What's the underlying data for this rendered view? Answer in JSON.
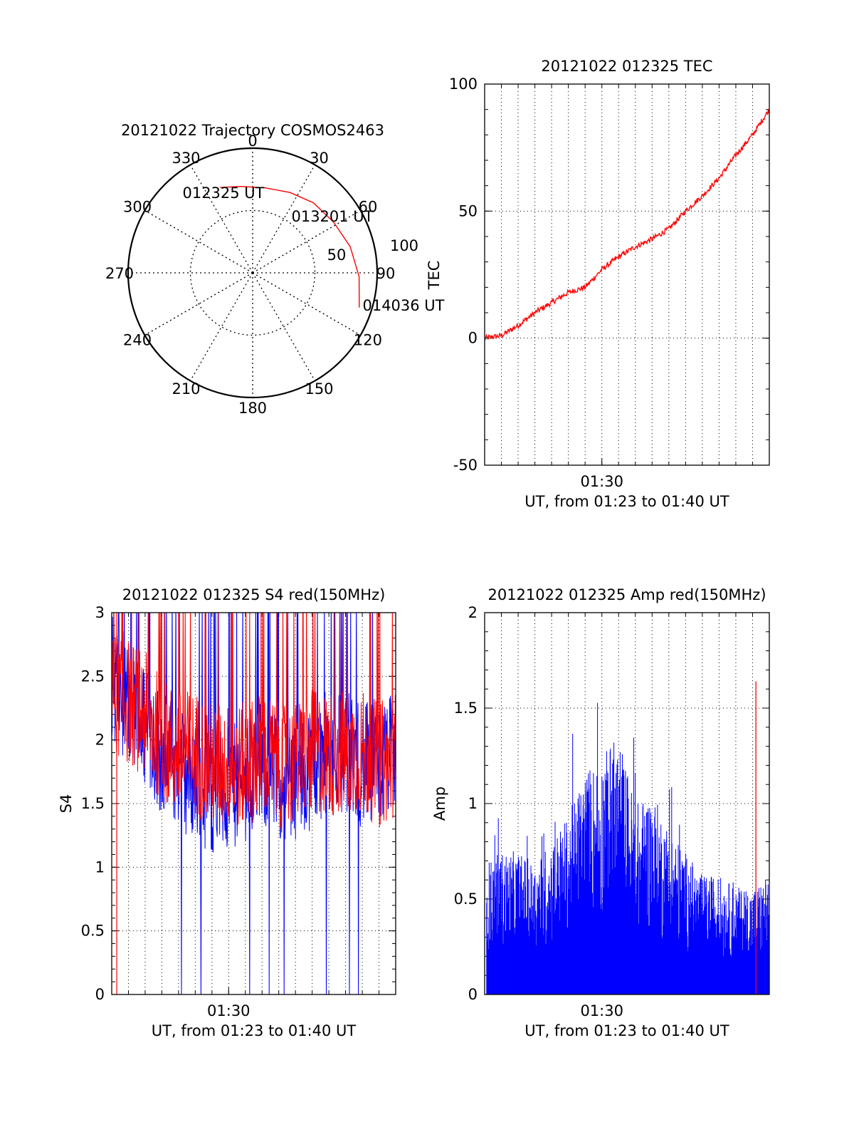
{
  "chart_data": [
    {
      "type": "polar",
      "title": "20121022 Trajectory COSMOS2463",
      "angle_labels": [
        "0",
        "30",
        "60",
        "90",
        "120",
        "150",
        "180",
        "210",
        "240",
        "270",
        "300",
        "330"
      ],
      "radius_ticks": [
        "50",
        "100"
      ],
      "trajectory": {
        "color": "#ff0000",
        "points": [
          {
            "azimuth": 339,
            "elevation": 24
          },
          {
            "azimuth": 352,
            "elevation": 27
          },
          {
            "azimuth": 8,
            "elevation": 28
          },
          {
            "azimuth": 25,
            "elevation": 26
          },
          {
            "azimuth": 41,
            "elevation": 23
          },
          {
            "azimuth": 58,
            "elevation": 21
          },
          {
            "azimuth": 75,
            "elevation": 17
          },
          {
            "azimuth": 92,
            "elevation": 13
          },
          {
            "azimuth": 108,
            "elevation": 9
          }
        ],
        "labels": [
          {
            "text": "012325 UT"
          },
          {
            "text": "013201 UT"
          },
          {
            "text": "014036 UT"
          }
        ]
      }
    },
    {
      "type": "line",
      "title": "20121022 012325 TEC",
      "xlabel": "UT, from 01:23 to 01:40 UT",
      "ylabel": "TEC",
      "xlim": [
        "01:23",
        "01:40"
      ],
      "ylim": [
        -50,
        100
      ],
      "yticks": [
        "-50",
        "0",
        "50",
        "100"
      ],
      "xtick_label": "01:30",
      "grid": true,
      "series": [
        {
          "color": "#ff0000",
          "x": [
            "01:23",
            "01:24",
            "01:25",
            "01:26",
            "01:27",
            "01:28",
            "01:29",
            "01:30",
            "01:31",
            "01:32",
            "01:33",
            "01:34",
            "01:35",
            "01:36",
            "01:37",
            "01:38",
            "01:39",
            "01:40"
          ],
          "values": [
            0,
            1,
            5,
            10,
            14,
            18,
            20,
            27,
            32,
            36,
            39,
            43,
            50,
            56,
            63,
            72,
            80,
            90
          ]
        }
      ]
    },
    {
      "type": "line",
      "title": "20121022 012325 S4 red(150MHz)",
      "xlabel": "UT, from 01:23 to 01:40 UT",
      "ylabel": "S4",
      "xlim": [
        "01:23",
        "01:40"
      ],
      "ylim": [
        0,
        3
      ],
      "yticks": [
        "0",
        "0.5",
        "1",
        "1.5",
        "2",
        "2.5",
        "3"
      ],
      "xtick_label": "01:30",
      "grid": true,
      "series": [
        {
          "color": "#0000ff",
          "x": [
            "01:23",
            "01:24",
            "01:25",
            "01:26",
            "01:27",
            "01:28",
            "01:29",
            "01:30",
            "01:31",
            "01:32",
            "01:33",
            "01:34",
            "01:35",
            "01:36",
            "01:37",
            "01:38",
            "01:39",
            "01:40"
          ],
          "values": [
            2.5,
            2.3,
            2.1,
            1.9,
            1.8,
            1.7,
            1.6,
            1.6,
            1.7,
            1.8,
            1.7,
            1.7,
            1.8,
            1.9,
            1.9,
            1.8,
            1.8,
            1.9
          ]
        },
        {
          "color": "#ff0000",
          "x": [
            "01:23",
            "01:24",
            "01:25",
            "01:26",
            "01:27",
            "01:28",
            "01:29",
            "01:30",
            "01:31",
            "01:32",
            "01:33",
            "01:34",
            "01:35",
            "01:36",
            "01:37",
            "01:38",
            "01:39",
            "01:40"
          ],
          "values": [
            2.4,
            2.3,
            2.2,
            2.0,
            1.9,
            1.9,
            1.8,
            1.8,
            1.8,
            1.9,
            1.8,
            1.8,
            1.9,
            1.9,
            1.9,
            1.9,
            1.8,
            1.9
          ]
        }
      ]
    },
    {
      "type": "bar",
      "title": "20121022 012325 Amp red(150MHz)",
      "xlabel": "UT, from 01:23 to 01:40 UT",
      "ylabel": "Amp",
      "xlim": [
        "01:23",
        "01:40"
      ],
      "ylim": [
        0,
        2
      ],
      "yticks": [
        "0",
        "0.5",
        "1",
        "1.5",
        "2"
      ],
      "xtick_label": "01:30",
      "grid": true,
      "series": [
        {
          "color": "#0000ff",
          "x": [
            "01:23",
            "01:24",
            "01:25",
            "01:26",
            "01:27",
            "01:28",
            "01:29",
            "01:30",
            "01:31",
            "01:32",
            "01:33",
            "01:34",
            "01:35",
            "01:36",
            "01:37",
            "01:38",
            "01:39",
            "01:40"
          ],
          "values": [
            0.55,
            0.6,
            0.6,
            0.55,
            0.65,
            0.75,
            0.95,
            1.0,
            1.1,
            0.8,
            0.85,
            0.7,
            0.6,
            0.5,
            0.5,
            0.45,
            0.45,
            0.5
          ]
        },
        {
          "color": "#ff0000",
          "x": [
            "01:39.2"
          ],
          "values": [
            1.64
          ]
        }
      ]
    }
  ]
}
